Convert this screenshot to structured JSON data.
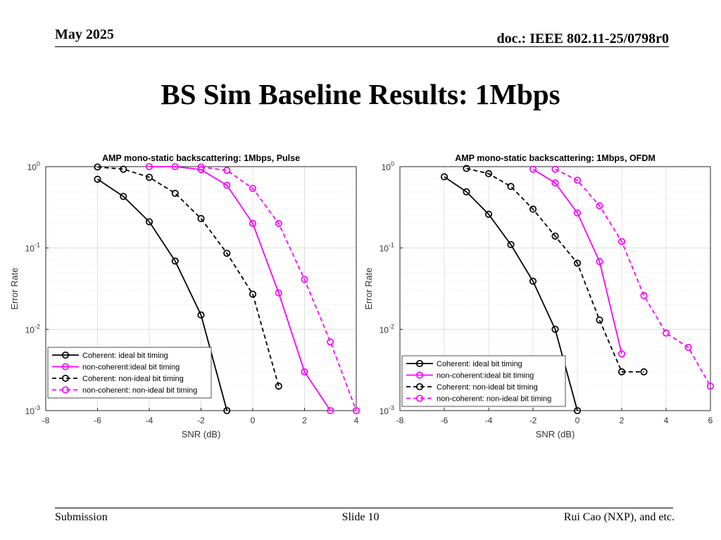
{
  "header": {
    "date": "May 2025",
    "doc": "doc.: IEEE 802.11-25/0798r0"
  },
  "title": "BS Sim Baseline Results: 1Mbps",
  "footer": {
    "submission": "Submission",
    "slide": "Slide 10",
    "author": "Rui Cao (NXP), and etc."
  },
  "colors": {
    "coherent": "#000000",
    "noncoherent": "#ff00ff"
  },
  "chart_data": [
    {
      "type": "line",
      "title": "AMP mono-static backscattering: 1Mbps, Pulse",
      "xlabel": "SNR (dB)",
      "ylabel": "Error Rate",
      "xlim": [
        -8,
        4
      ],
      "ylim": [
        0.001,
        1
      ],
      "yscale": "log",
      "xticks": [
        -8,
        -6,
        -4,
        -2,
        0,
        2,
        4
      ],
      "xtick_labels": [
        "-8",
        "-6",
        "-4",
        "-2",
        "0",
        "2",
        "4"
      ],
      "yticks": [
        1,
        0.1,
        0.01,
        0.001
      ],
      "ytick_labels": [
        {
          "base": "10",
          "exp": "0"
        },
        {
          "base": "10",
          "exp": "-1"
        },
        {
          "base": "10",
          "exp": "-2"
        },
        {
          "base": "10",
          "exp": "-3"
        }
      ],
      "grid": true,
      "legend_position": "bottom-left",
      "series": [
        {
          "name": "Coherent: ideal bit timing",
          "color": "#000000",
          "dashed": false,
          "x": [
            -6,
            -5,
            -4,
            -3,
            -2,
            -1
          ],
          "y": [
            0.7,
            0.43,
            0.21,
            0.069,
            0.015,
            0.001
          ]
        },
        {
          "name": "non-coherent:ideal bit timing",
          "color": "#ff00ff",
          "dashed": false,
          "x": [
            -4,
            -3,
            -2,
            -1,
            0,
            1,
            2,
            3
          ],
          "y": [
            1.0,
            1.0,
            0.92,
            0.59,
            0.2,
            0.028,
            0.003,
            0.001
          ]
        },
        {
          "name": "Coherent: non-ideal bit timing",
          "color": "#000000",
          "dashed": true,
          "x": [
            -6,
            -5,
            -4,
            -3,
            -2,
            -1,
            0,
            1
          ],
          "y": [
            0.99,
            0.93,
            0.74,
            0.47,
            0.23,
            0.086,
            0.027,
            0.002
          ]
        },
        {
          "name": "non-coherent: non-ideal bit timing",
          "color": "#ff00ff",
          "dashed": true,
          "x": [
            -2,
            -1,
            0,
            1,
            2,
            3,
            4
          ],
          "y": [
            0.99,
            0.9,
            0.54,
            0.2,
            0.041,
            0.007,
            0.001
          ]
        }
      ]
    },
    {
      "type": "line",
      "title": "AMP mono-static backscattering: 1Mbps, OFDM",
      "xlabel": "SNR (dB)",
      "ylabel": "Error Rate",
      "xlim": [
        -8,
        6
      ],
      "ylim": [
        0.001,
        1
      ],
      "yscale": "log",
      "xticks": [
        -8,
        -6,
        -4,
        -2,
        0,
        2,
        4,
        6
      ],
      "xtick_labels": [
        "-8",
        "-6",
        "-4",
        "-2",
        "0",
        "2",
        "4",
        "6"
      ],
      "yticks": [
        1,
        0.1,
        0.01,
        0.001
      ],
      "ytick_labels": [
        {
          "base": "10",
          "exp": "0"
        },
        {
          "base": "10",
          "exp": "-1"
        },
        {
          "base": "10",
          "exp": "-2"
        },
        {
          "base": "10",
          "exp": "-3"
        }
      ],
      "grid": true,
      "legend_position": "bottom-left",
      "series": [
        {
          "name": "Coherent: ideal bit timing",
          "color": "#000000",
          "dashed": false,
          "x": [
            -6,
            -5,
            -4,
            -3,
            -2,
            -1,
            0
          ],
          "y": [
            0.75,
            0.49,
            0.26,
            0.11,
            0.039,
            0.01,
            0.001
          ]
        },
        {
          "name": "non-coherent:ideal bit timing",
          "color": "#ff00ff",
          "dashed": false,
          "x": [
            -2,
            -1,
            0,
            1,
            2
          ],
          "y": [
            0.93,
            0.63,
            0.27,
            0.068,
            0.005
          ]
        },
        {
          "name": "Coherent: non-ideal bit timing",
          "color": "#000000",
          "dashed": true,
          "x": [
            -5,
            -4,
            -3,
            -2,
            -1,
            0,
            1,
            2,
            3
          ],
          "y": [
            0.95,
            0.82,
            0.57,
            0.3,
            0.14,
            0.065,
            0.013,
            0.003,
            0.003
          ]
        },
        {
          "name": "non-coherent: non-ideal bit timing",
          "color": "#ff00ff",
          "dashed": true,
          "x": [
            -1,
            0,
            1,
            2,
            3,
            4,
            5,
            6
          ],
          "y": [
            0.93,
            0.68,
            0.33,
            0.12,
            0.026,
            0.009,
            0.006,
            0.002
          ]
        }
      ]
    }
  ]
}
